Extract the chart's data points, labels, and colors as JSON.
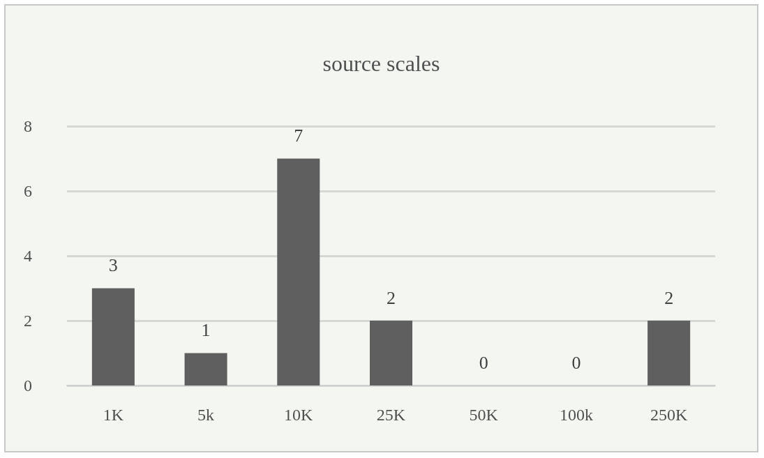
{
  "chart_data": {
    "type": "bar",
    "title": "source scales",
    "categories": [
      "1K",
      "5k",
      "10K",
      "25K",
      "50K",
      "100k",
      "250K"
    ],
    "values": [
      3,
      1,
      7,
      2,
      0,
      0,
      2
    ],
    "color": "#5f5f5f",
    "ylim": [
      0,
      8
    ],
    "yticks": [
      0,
      2,
      4,
      6,
      8
    ],
    "grid": "y",
    "data_labels": true
  }
}
